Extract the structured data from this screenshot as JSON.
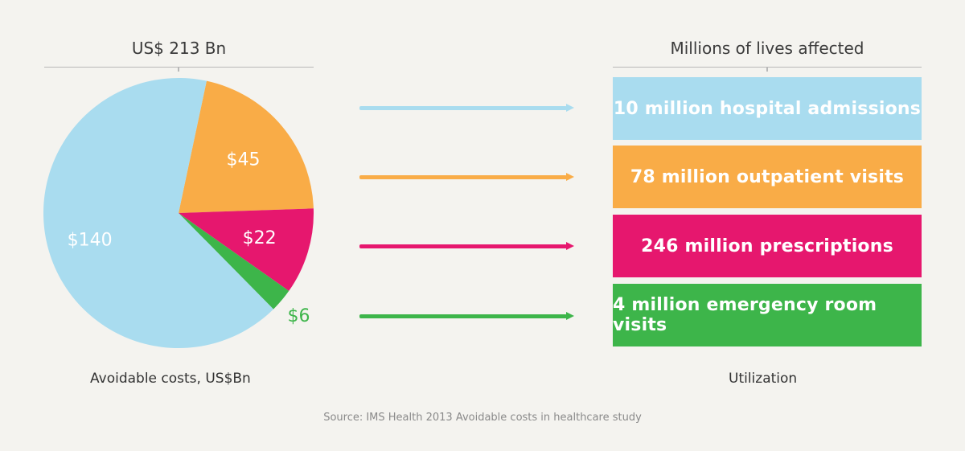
{
  "chart_data": {
    "type": "pie",
    "title": "US$ 213 Bn",
    "caption": "Avoidable costs, US$Bn",
    "slices": [
      {
        "label": "$140",
        "value": 140,
        "color": "#a9dcef"
      },
      {
        "label": "$45",
        "value": 45,
        "color": "#f9ac47"
      },
      {
        "label": "$22",
        "value": 22,
        "color": "#e6176e"
      },
      {
        "label": "$6",
        "value": 6,
        "color": "#3db54a"
      }
    ]
  },
  "utilization": {
    "title": "Millions of lives affected",
    "caption": "Utilization",
    "items": [
      {
        "label": "10 million hospital admissions",
        "color": "#a9dcef"
      },
      {
        "label": "78 million outpatient visits",
        "color": "#f9ac47"
      },
      {
        "label": "246 million prescriptions",
        "color": "#e6176e"
      },
      {
        "label": "4 million emergency room visits",
        "color": "#3db54a"
      }
    ]
  },
  "source": "Source: IMS Health 2013 Avoidable costs in healthcare study"
}
